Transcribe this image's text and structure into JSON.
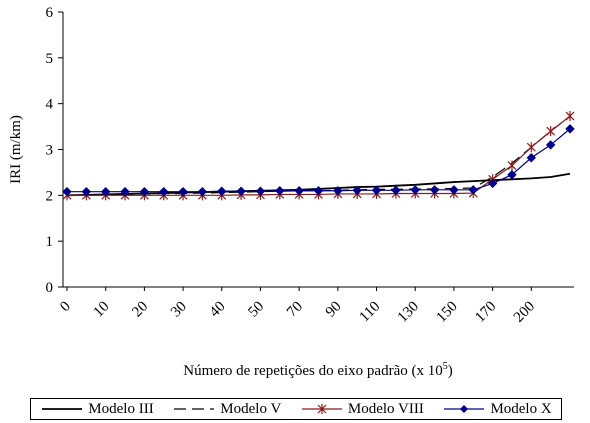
{
  "chart_data": {
    "type": "line",
    "title": "",
    "xlabel": "Número de repetições do eixo padrão (x 10",
    "xlabel_sup": "5",
    "xlabel_tail": ")",
    "ylabel": "IRI (m/km)",
    "ylim": [
      0,
      6
    ],
    "yticks": [
      "0",
      "1",
      "2",
      "3",
      "4",
      "5",
      "6"
    ],
    "xticks": [
      "0",
      "10",
      "20",
      "30",
      "40",
      "50",
      "70",
      "90",
      "110",
      "130",
      "150",
      "170",
      "200"
    ],
    "x": [
      0,
      5,
      10,
      15,
      20,
      25,
      30,
      35,
      40,
      45,
      50,
      55,
      60,
      65,
      70,
      75,
      80,
      85,
      90,
      95,
      100,
      105,
      110,
      115,
      120,
      125,
      130
    ],
    "series": [
      {
        "name": "Modelo III",
        "color": "#000000",
        "dash": "solid",
        "marker": "none",
        "values": [
          2.0,
          2.01,
          2.02,
          2.03,
          2.04,
          2.05,
          2.06,
          2.07,
          2.08,
          2.09,
          2.1,
          2.11,
          2.12,
          2.14,
          2.16,
          2.18,
          2.19,
          2.21,
          2.23,
          2.26,
          2.29,
          2.31,
          2.33,
          2.35,
          2.37,
          2.4,
          2.47
        ]
      },
      {
        "name": "Modelo V",
        "color": "#000000",
        "dash": "long-dash",
        "marker": "none",
        "values": [
          2.0,
          2.0,
          2.01,
          2.02,
          2.03,
          2.04,
          2.04,
          2.05,
          2.06,
          2.07,
          2.08,
          2.09,
          2.1,
          2.1,
          2.11,
          2.12,
          2.13,
          2.13,
          2.14,
          2.14,
          2.15,
          2.16,
          2.4,
          2.7,
          3.05,
          3.4,
          3.72
        ]
      },
      {
        "name": "Modelo VIII",
        "color": "#8b1a1a",
        "dash": "solid",
        "marker": "asterisk",
        "values": [
          2.0,
          2.0,
          2.0,
          2.0,
          2.0,
          2.0,
          2.0,
          2.0,
          2.0,
          2.01,
          2.01,
          2.02,
          2.02,
          2.02,
          2.03,
          2.03,
          2.03,
          2.04,
          2.04,
          2.04,
          2.04,
          2.05,
          2.35,
          2.65,
          3.05,
          3.4,
          3.73
        ]
      },
      {
        "name": "Modelo X",
        "color": "#00008b",
        "dash": "solid",
        "marker": "diamond",
        "values": [
          2.08,
          2.08,
          2.08,
          2.08,
          2.08,
          2.08,
          2.08,
          2.08,
          2.09,
          2.09,
          2.09,
          2.1,
          2.1,
          2.1,
          2.1,
          2.11,
          2.11,
          2.11,
          2.12,
          2.12,
          2.12,
          2.12,
          2.26,
          2.45,
          2.82,
          3.1,
          3.45
        ]
      }
    ],
    "grid": false,
    "legend_position": "bottom"
  }
}
